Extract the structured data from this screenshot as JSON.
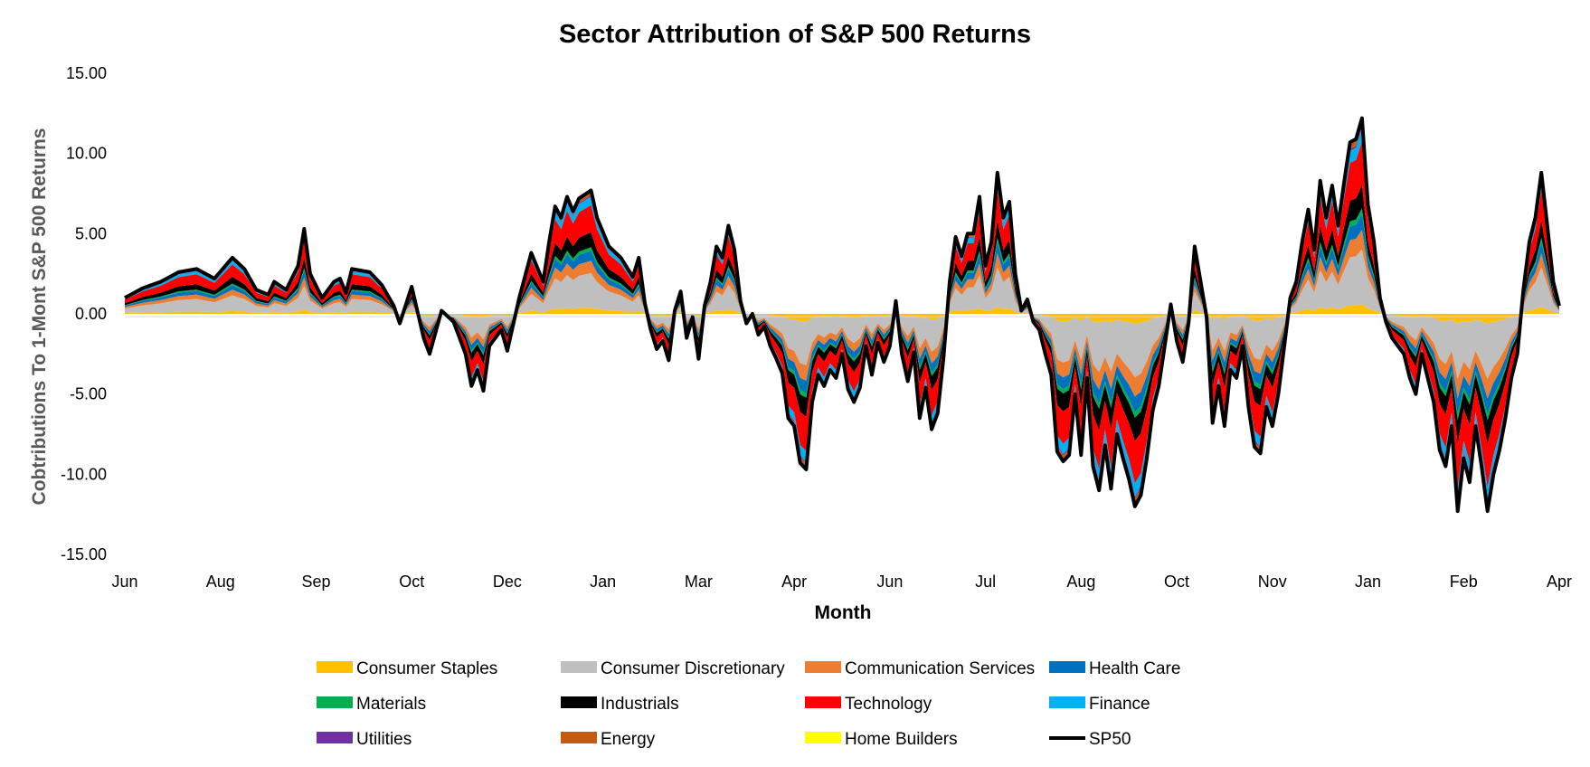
{
  "chart_data": {
    "type": "area",
    "stacked": true,
    "title": "Sector Attribution of S&P 500 Returns",
    "xlabel": "Month",
    "ylabel": "Cobtributions To 1-Mont S&P 500 Returns",
    "ylim": [
      -15,
      15
    ],
    "ytick_values": [
      15,
      10,
      5,
      0,
      -5,
      -10,
      -15
    ],
    "ytick_labels": [
      "15.00",
      "10.00",
      "5.00",
      "0.00",
      "-5.00",
      "-10.00",
      "-15.00"
    ],
    "xtick_labels": [
      "Jun",
      "Aug",
      "Sep",
      "Oct",
      "Dec",
      "Jan",
      "Mar",
      "Apr",
      "Jun",
      "Jul",
      "Aug",
      "Oct",
      "Nov",
      "Jan",
      "Feb",
      "Apr"
    ],
    "x_index_range": [
      0,
      240
    ],
    "legend": [
      {
        "name": "Consumer Staples",
        "color": "#FFC000"
      },
      {
        "name": "Consumer Discretionary",
        "color": "#BFBFBF"
      },
      {
        "name": "Communication Services",
        "color": "#ED7D31"
      },
      {
        "name": "Health Care",
        "color": "#0070C0"
      },
      {
        "name": "Materials",
        "color": "#00B050"
      },
      {
        "name": "Industrials",
        "color": "#000000"
      },
      {
        "name": "Technology",
        "color": "#FF0000"
      },
      {
        "name": "Finance",
        "color": "#00B0F0"
      },
      {
        "name": "Utilities",
        "color": "#7030A0"
      },
      {
        "name": "Energy",
        "color": "#C55A11"
      },
      {
        "name": "Home Builders",
        "color": "#FFFF00"
      },
      {
        "name": "SP50",
        "color": "#000000",
        "line": true
      }
    ],
    "sp500_keypoints": [
      [
        0,
        1.0
      ],
      [
        3,
        1.6
      ],
      [
        6,
        2.0
      ],
      [
        9,
        2.6
      ],
      [
        12,
        2.8
      ],
      [
        15,
        2.2
      ],
      [
        18,
        3.5
      ],
      [
        20,
        2.8
      ],
      [
        22,
        1.5
      ],
      [
        24,
        1.2
      ],
      [
        25,
        2.0
      ],
      [
        27,
        1.5
      ],
      [
        29,
        3.0
      ],
      [
        30,
        5.3
      ],
      [
        31,
        2.5
      ],
      [
        33,
        1.0
      ],
      [
        35,
        2.0
      ],
      [
        36,
        2.2
      ],
      [
        37,
        1.3
      ],
      [
        38,
        2.8
      ],
      [
        41,
        2.6
      ],
      [
        43,
        1.8
      ],
      [
        45,
        0.5
      ],
      [
        46,
        -0.6
      ],
      [
        48,
        1.7
      ],
      [
        50,
        -1.5
      ],
      [
        51,
        -2.5
      ],
      [
        53,
        0.2
      ],
      [
        55,
        -0.5
      ],
      [
        57,
        -2.5
      ],
      [
        58,
        -4.5
      ],
      [
        59,
        -3.5
      ],
      [
        60,
        -4.8
      ],
      [
        61,
        -2.0
      ],
      [
        63,
        -1.0
      ],
      [
        64,
        -2.3
      ],
      [
        66,
        1.0
      ],
      [
        68,
        3.8
      ],
      [
        70,
        2.0
      ],
      [
        71,
        4.5
      ],
      [
        72,
        6.7
      ],
      [
        73,
        6.0
      ],
      [
        74,
        7.3
      ],
      [
        75,
        6.4
      ],
      [
        76,
        7.2
      ],
      [
        78,
        7.7
      ],
      [
        79,
        6.0
      ],
      [
        81,
        4.2
      ],
      [
        83,
        3.5
      ],
      [
        85,
        2.3
      ],
      [
        86,
        3.5
      ],
      [
        87,
        0.7
      ],
      [
        88,
        -1.0
      ],
      [
        89,
        -2.2
      ],
      [
        90,
        -1.7
      ],
      [
        91,
        -2.9
      ],
      [
        92,
        0.2
      ],
      [
        93,
        1.4
      ],
      [
        94,
        -1.5
      ],
      [
        95,
        -0.2
      ],
      [
        96,
        -2.8
      ],
      [
        97,
        0.5
      ],
      [
        98,
        2.0
      ],
      [
        99,
        4.2
      ],
      [
        100,
        3.5
      ],
      [
        101,
        5.5
      ],
      [
        102,
        4.0
      ],
      [
        103,
        0.8
      ],
      [
        104,
        -0.6
      ],
      [
        105,
        0.0
      ],
      [
        106,
        -1.3
      ],
      [
        107,
        -0.8
      ],
      [
        108,
        -2.0
      ],
      [
        109,
        -2.8
      ],
      [
        110,
        -3.7
      ],
      [
        111,
        -6.5
      ],
      [
        112,
        -7.0
      ],
      [
        113,
        -9.3
      ],
      [
        114,
        -9.7
      ],
      [
        115,
        -5.5
      ],
      [
        116,
        -3.8
      ],
      [
        117,
        -4.5
      ],
      [
        118,
        -3.5
      ],
      [
        119,
        -4.0
      ],
      [
        120,
        -2.5
      ],
      [
        121,
        -4.7
      ],
      [
        122,
        -5.5
      ],
      [
        123,
        -4.6
      ],
      [
        124,
        -2.0
      ],
      [
        125,
        -3.8
      ],
      [
        126,
        -1.8
      ],
      [
        127,
        -3.0
      ],
      [
        128,
        -2.0
      ],
      [
        129,
        0.8
      ],
      [
        130,
        -2.5
      ],
      [
        131,
        -4.2
      ],
      [
        132,
        -2.4
      ],
      [
        133,
        -6.5
      ],
      [
        134,
        -4.6
      ],
      [
        135,
        -7.2
      ],
      [
        136,
        -6.2
      ],
      [
        137,
        -2.7
      ],
      [
        138,
        2.0
      ],
      [
        139,
        4.8
      ],
      [
        140,
        3.6
      ],
      [
        141,
        5.0
      ],
      [
        142,
        5.0
      ],
      [
        143,
        7.3
      ],
      [
        144,
        3.0
      ],
      [
        145,
        4.5
      ],
      [
        146,
        8.8
      ],
      [
        147,
        6.0
      ],
      [
        148,
        7.0
      ],
      [
        149,
        2.5
      ],
      [
        150,
        0.2
      ],
      [
        151,
        0.9
      ],
      [
        152,
        -0.5
      ],
      [
        153,
        -1.0
      ],
      [
        154,
        -2.5
      ],
      [
        155,
        -3.8
      ],
      [
        156,
        -8.6
      ],
      [
        157,
        -9.2
      ],
      [
        158,
        -8.8
      ],
      [
        159,
        -5.0
      ],
      [
        160,
        -8.8
      ],
      [
        161,
        -4.0
      ],
      [
        162,
        -9.5
      ],
      [
        163,
        -11.0
      ],
      [
        164,
        -8.2
      ],
      [
        165,
        -10.9
      ],
      [
        166,
        -7.5
      ],
      [
        167,
        -9.0
      ],
      [
        168,
        -10.3
      ],
      [
        169,
        -12.0
      ],
      [
        170,
        -11.3
      ],
      [
        171,
        -9.0
      ],
      [
        172,
        -6.0
      ],
      [
        173,
        -4.5
      ],
      [
        174,
        -2.0
      ],
      [
        175,
        0.6
      ],
      [
        176,
        -1.7
      ],
      [
        177,
        -3.0
      ],
      [
        178,
        -0.5
      ],
      [
        179,
        4.2
      ],
      [
        180,
        2.0
      ],
      [
        181,
        -0.2
      ],
      [
        182,
        -6.8
      ],
      [
        183,
        -4.5
      ],
      [
        184,
        -7.0
      ],
      [
        185,
        -3.5
      ],
      [
        186,
        -4.0
      ],
      [
        187,
        -2.0
      ],
      [
        188,
        -5.8
      ],
      [
        189,
        -8.3
      ],
      [
        190,
        -8.7
      ],
      [
        191,
        -5.8
      ],
      [
        192,
        -7.0
      ],
      [
        193,
        -5.0
      ],
      [
        194,
        -2.0
      ],
      [
        195,
        1.0
      ],
      [
        196,
        2.0
      ],
      [
        197,
        4.5
      ],
      [
        198,
        6.5
      ],
      [
        199,
        4.0
      ],
      [
        200,
        8.3
      ],
      [
        201,
        6.0
      ],
      [
        202,
        8.0
      ],
      [
        203,
        5.5
      ],
      [
        204,
        8.2
      ],
      [
        205,
        10.7
      ],
      [
        206,
        10.9
      ],
      [
        207,
        12.2
      ],
      [
        208,
        6.8
      ],
      [
        209,
        4.5
      ],
      [
        210,
        1.0
      ],
      [
        211,
        -0.5
      ]
    ]
  }
}
